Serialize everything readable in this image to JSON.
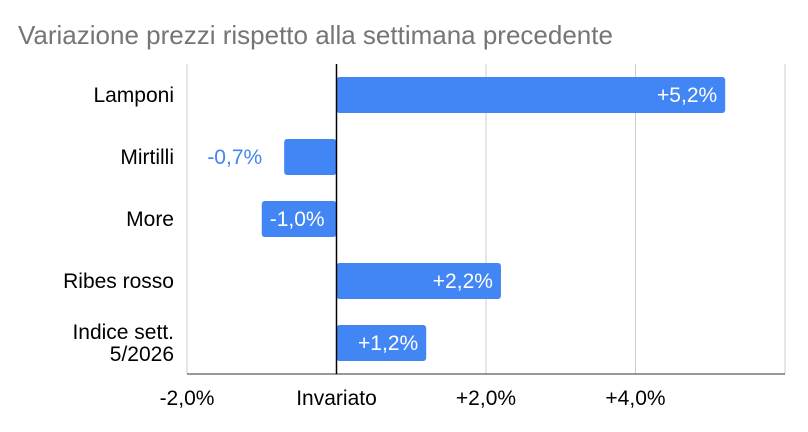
{
  "chart_data": {
    "type": "bar",
    "orientation": "horizontal",
    "title": "Variazione prezzi rispetto alla settimana precedente",
    "categories": [
      [
        "Lamponi"
      ],
      [
        "Mirtilli"
      ],
      [
        "More"
      ],
      [
        "Ribes rosso"
      ],
      [
        "Indice sett.",
        "5/2026"
      ]
    ],
    "values": [
      5.2,
      -0.7,
      -1.0,
      2.2,
      1.2
    ],
    "data_labels": [
      "+5,2%",
      "-0,7%",
      "-1,0%",
      "+2,2%",
      "+1,2%"
    ],
    "xlim": [
      -2.0,
      6.0
    ],
    "x_ticks": [
      -2,
      0,
      2,
      4,
      6
    ],
    "x_tick_labels": [
      "-2,0%",
      "Invariato",
      "+2,0%",
      "+4,0%",
      ""
    ],
    "grid": true,
    "legend": "none",
    "colors": {
      "bar": "#4285f4",
      "label_inside": "#ffffff",
      "label_outside": "#4285f4",
      "grid": "#cccccc",
      "zero_line": "#000000",
      "title": "#757575"
    }
  }
}
